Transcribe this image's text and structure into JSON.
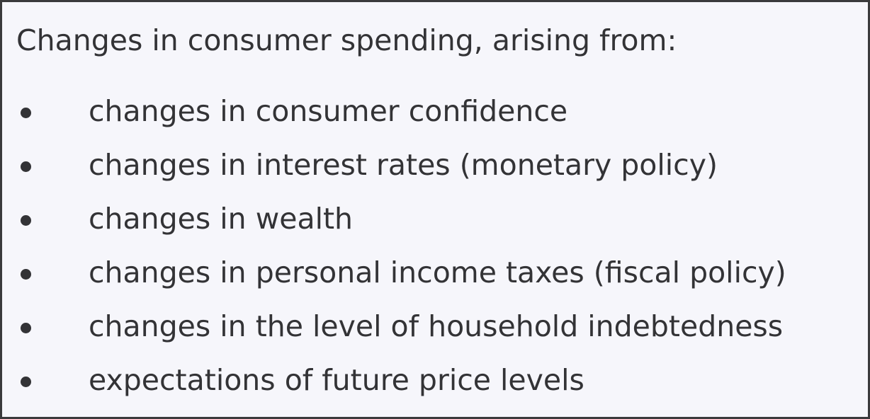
{
  "panel": {
    "heading": "Changes in consumer spending, arising from:",
    "items": [
      "changes in consumer confidence",
      "changes in interest rates (monetary policy)",
      "changes in wealth",
      "changes in personal income taxes (fiscal policy)",
      "changes in the level of household indebtedness",
      "expectations of future price levels"
    ]
  },
  "colors": {
    "background": "#f6f6fb",
    "text": "#333336",
    "border": "#3a3a3c"
  }
}
